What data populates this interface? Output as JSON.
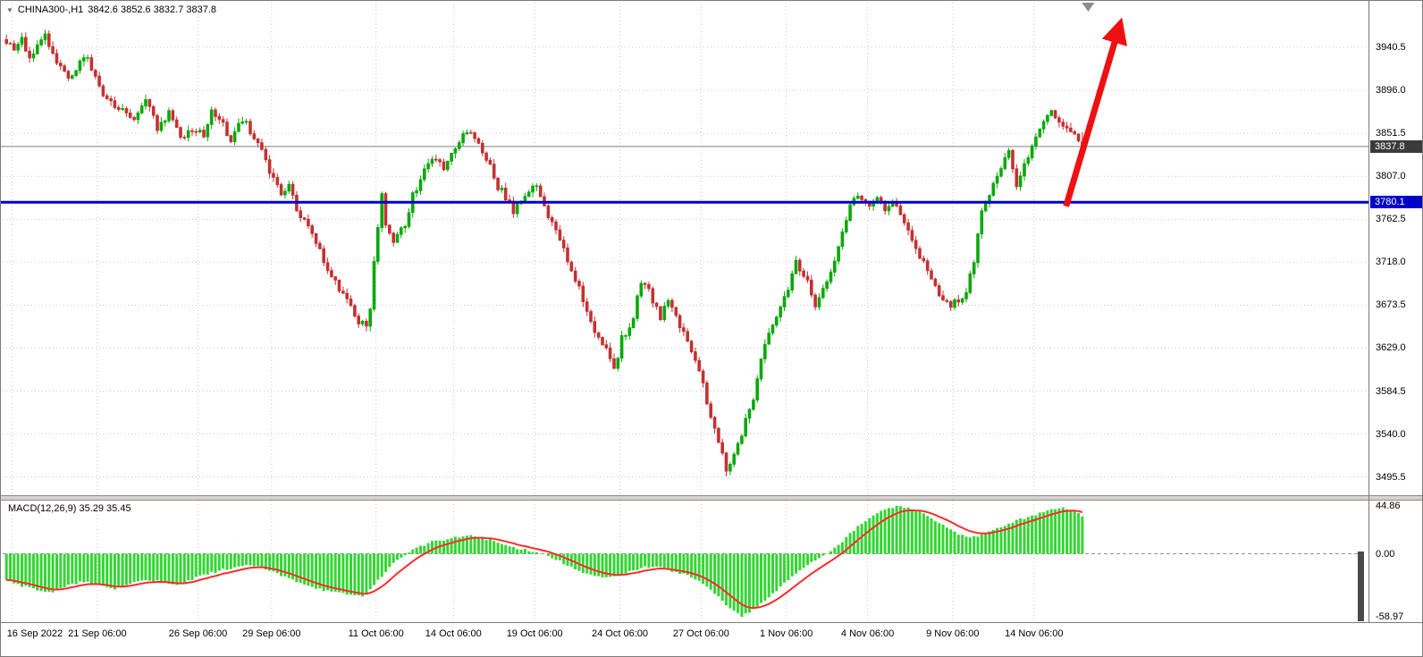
{
  "header": {
    "symbol_timeframe": "CHINA300-,H1",
    "ohlc_values": "3842.6 3852.6 3832.7 3837.8"
  },
  "icons": {
    "dropdown": "▼"
  },
  "macd_panel": {
    "label": "MACD(12,26,9) 35.29 35.45"
  },
  "price_axis": {
    "badges": [
      {
        "name": "current-price",
        "text": "3837.8",
        "value": 3837.8,
        "bg": "#3A3A3A"
      },
      {
        "name": "hline-price",
        "text": "3780.1",
        "value": 3780.1,
        "bg": "#0000C8"
      }
    ]
  },
  "objects": {
    "hline": {
      "price": 3780.1,
      "color": "#0000C8",
      "width": 3
    },
    "arrow": {
      "start": {
        "bar": 273.8,
        "price": 3776
      },
      "end": {
        "bar": 286.8,
        "price": 3952
      },
      "color": "#EE1111",
      "width": 7
    },
    "shift_marker": {
      "bar": 279.5,
      "color": "#8C8C8C"
    }
  },
  "colors": {
    "bull": "#09A909",
    "bear": "#C53131",
    "grid": "#C9C9C9",
    "macd_hist": "#33D633",
    "macd_signal": "#FF2B2B",
    "current_price_line": "#808080",
    "text": "#000000",
    "bg": "#FFFFFF"
  },
  "chart_data": [
    {
      "type": "candlestick",
      "title": "CHINA300-,H1",
      "symbol": "CHINA300-",
      "timeframe": "H1",
      "bars": 279,
      "price_line": 3837.8,
      "last_candle": {
        "open": 3842.6,
        "high": 3852.6,
        "low": 3832.7,
        "close": 3837.8
      },
      "y_ticks": [
        3940.5,
        3896.0,
        3851.5,
        3807.0,
        3762.5,
        3718.0,
        3673.5,
        3629.0,
        3584.5,
        3540.0,
        3495.5
      ],
      "visible_price_range": [
        3495.5,
        3965
      ],
      "x_labels": [
        {
          "label": "16 Sep 2022",
          "bar": 1.5
        },
        {
          "label": "21 Sep 06:00",
          "bar": 23.5
        },
        {
          "label": "26 Sep 06:00",
          "bar": 49.5
        },
        {
          "label": "29 Sep 06:00",
          "bar": 68.5
        },
        {
          "label": "11 Oct 06:00",
          "bar": 95.5
        },
        {
          "label": "14 Oct 06:00",
          "bar": 115.5
        },
        {
          "label": "19 Oct 06:00",
          "bar": 136.5
        },
        {
          "label": "24 Oct 06:00",
          "bar": 158.5
        },
        {
          "label": "27 Oct 06:00",
          "bar": 179.5
        },
        {
          "label": "1 Nov 06:00",
          "bar": 201.5
        },
        {
          "label": "4 Nov 06:00",
          "bar": 222.5
        },
        {
          "label": "9 Nov 06:00",
          "bar": 244.5
        },
        {
          "label": "14 Nov 06:00",
          "bar": 265.5
        }
      ],
      "trend_anchors": [
        [
          0,
          3948
        ],
        [
          2,
          3936
        ],
        [
          4,
          3950
        ],
        [
          6,
          3928
        ],
        [
          8,
          3940
        ],
        [
          10,
          3952
        ],
        [
          13,
          3928
        ],
        [
          16,
          3908
        ],
        [
          19,
          3924
        ],
        [
          21,
          3930
        ],
        [
          24,
          3898
        ],
        [
          27,
          3884
        ],
        [
          30,
          3878
        ],
        [
          33,
          3866
        ],
        [
          36,
          3888
        ],
        [
          39,
          3856
        ],
        [
          42,
          3872
        ],
        [
          45,
          3848
        ],
        [
          48,
          3854
        ],
        [
          51,
          3850
        ],
        [
          53,
          3876
        ],
        [
          56,
          3860
        ],
        [
          58,
          3846
        ],
        [
          61,
          3866
        ],
        [
          64,
          3848
        ],
        [
          66,
          3836
        ],
        [
          68,
          3810
        ],
        [
          71,
          3788
        ],
        [
          73,
          3800
        ],
        [
          75,
          3770
        ],
        [
          78,
          3754
        ],
        [
          80,
          3740
        ],
        [
          82,
          3720
        ],
        [
          85,
          3698
        ],
        [
          87,
          3686
        ],
        [
          89,
          3674
        ],
        [
          91,
          3658
        ],
        [
          93,
          3654
        ],
        [
          94,
          3668
        ],
        [
          95,
          3722
        ],
        [
          97,
          3786
        ],
        [
          98,
          3758
        ],
        [
          100,
          3742
        ],
        [
          103,
          3754
        ],
        [
          105,
          3786
        ],
        [
          107,
          3806
        ],
        [
          110,
          3826
        ],
        [
          113,
          3816
        ],
        [
          115,
          3834
        ],
        [
          117,
          3840
        ],
        [
          119,
          3856
        ],
        [
          121,
          3846
        ],
        [
          123,
          3832
        ],
        [
          125,
          3816
        ],
        [
          127,
          3796
        ],
        [
          129,
          3786
        ],
        [
          131,
          3770
        ],
        [
          133,
          3782
        ],
        [
          135,
          3794
        ],
        [
          137,
          3798
        ],
        [
          139,
          3778
        ],
        [
          141,
          3758
        ],
        [
          143,
          3740
        ],
        [
          145,
          3718
        ],
        [
          148,
          3690
        ],
        [
          150,
          3668
        ],
        [
          152,
          3648
        ],
        [
          155,
          3628
        ],
        [
          157,
          3604
        ],
        [
          159,
          3638
        ],
        [
          162,
          3660
        ],
        [
          164,
          3700
        ],
        [
          166,
          3688
        ],
        [
          169,
          3660
        ],
        [
          171,
          3678
        ],
        [
          173,
          3660
        ],
        [
          176,
          3638
        ],
        [
          178,
          3618
        ],
        [
          180,
          3590
        ],
        [
          182,
          3558
        ],
        [
          184,
          3530
        ],
        [
          186,
          3504
        ],
        [
          188,
          3518
        ],
        [
          190,
          3540
        ],
        [
          193,
          3578
        ],
        [
          195,
          3620
        ],
        [
          197,
          3648
        ],
        [
          200,
          3670
        ],
        [
          202,
          3690
        ],
        [
          204,
          3720
        ],
        [
          207,
          3698
        ],
        [
          209,
          3668
        ],
        [
          211,
          3690
        ],
        [
          214,
          3720
        ],
        [
          216,
          3750
        ],
        [
          218,
          3774
        ],
        [
          220,
          3790
        ],
        [
          223,
          3774
        ],
        [
          225,
          3784
        ],
        [
          227,
          3768
        ],
        [
          230,
          3780
        ],
        [
          232,
          3760
        ],
        [
          234,
          3740
        ],
        [
          237,
          3718
        ],
        [
          239,
          3698
        ],
        [
          241,
          3684
        ],
        [
          244,
          3674
        ],
        [
          246,
          3680
        ],
        [
          248,
          3684
        ],
        [
          250,
          3720
        ],
        [
          252,
          3770
        ],
        [
          254,
          3790
        ],
        [
          256,
          3810
        ],
        [
          259,
          3830
        ],
        [
          261,
          3798
        ],
        [
          263,
          3820
        ],
        [
          266,
          3848
        ],
        [
          268,
          3860
        ],
        [
          270,
          3874
        ],
        [
          272,
          3866
        ],
        [
          275,
          3852
        ],
        [
          277,
          3844
        ],
        [
          278,
          3837.8
        ]
      ]
    },
    {
      "type": "macd-histogram",
      "label": "MACD(12,26,9)",
      "macd_value": 35.29,
      "signal_value": 35.45,
      "range": [
        -58.97,
        44.86
      ],
      "y_ticks": [
        {
          "text": "44.86",
          "value": 44.86
        },
        {
          "text": "0.00",
          "value": 0
        },
        {
          "text": "-58.97",
          "value": -58.97
        }
      ],
      "macd_anchors": [
        [
          0,
          -24
        ],
        [
          4,
          -30
        ],
        [
          8,
          -34
        ],
        [
          12,
          -36
        ],
        [
          16,
          -30
        ],
        [
          20,
          -26
        ],
        [
          24,
          -30
        ],
        [
          28,
          -33
        ],
        [
          32,
          -28
        ],
        [
          36,
          -24
        ],
        [
          40,
          -27
        ],
        [
          44,
          -30
        ],
        [
          48,
          -24
        ],
        [
          52,
          -19
        ],
        [
          56,
          -15
        ],
        [
          60,
          -12
        ],
        [
          64,
          -11
        ],
        [
          68,
          -16
        ],
        [
          72,
          -22
        ],
        [
          76,
          -27
        ],
        [
          80,
          -32
        ],
        [
          84,
          -36
        ],
        [
          88,
          -38
        ],
        [
          92,
          -40
        ],
        [
          95,
          -30
        ],
        [
          98,
          -16
        ],
        [
          101,
          -6
        ],
        [
          104,
          2
        ],
        [
          107,
          7
        ],
        [
          110,
          11
        ],
        [
          113,
          13
        ],
        [
          116,
          15
        ],
        [
          119,
          17
        ],
        [
          122,
          16
        ],
        [
          125,
          13
        ],
        [
          128,
          9
        ],
        [
          131,
          6
        ],
        [
          134,
          4
        ],
        [
          137,
          2
        ],
        [
          140,
          -2
        ],
        [
          143,
          -7
        ],
        [
          146,
          -13
        ],
        [
          149,
          -17
        ],
        [
          152,
          -21
        ],
        [
          155,
          -23
        ],
        [
          158,
          -21
        ],
        [
          161,
          -17
        ],
        [
          164,
          -13
        ],
        [
          167,
          -12
        ],
        [
          170,
          -14
        ],
        [
          173,
          -17
        ],
        [
          176,
          -20
        ],
        [
          179,
          -26
        ],
        [
          182,
          -34
        ],
        [
          185,
          -44
        ],
        [
          188,
          -54
        ],
        [
          190,
          -58.9
        ],
        [
          192,
          -55
        ],
        [
          195,
          -47
        ],
        [
          198,
          -38
        ],
        [
          201,
          -28
        ],
        [
          204,
          -18
        ],
        [
          207,
          -10
        ],
        [
          210,
          -4
        ],
        [
          213,
          3
        ],
        [
          216,
          12
        ],
        [
          219,
          22
        ],
        [
          222,
          31
        ],
        [
          225,
          38
        ],
        [
          228,
          43
        ],
        [
          231,
          44.8
        ],
        [
          234,
          42
        ],
        [
          237,
          38
        ],
        [
          240,
          31
        ],
        [
          243,
          24
        ],
        [
          246,
          18
        ],
        [
          249,
          15
        ],
        [
          252,
          17
        ],
        [
          255,
          22
        ],
        [
          258,
          27
        ],
        [
          261,
          31
        ],
        [
          264,
          35
        ],
        [
          267,
          38
        ],
        [
          270,
          41
        ],
        [
          273,
          43
        ],
        [
          276,
          42
        ],
        [
          278,
          35.3
        ]
      ]
    }
  ]
}
